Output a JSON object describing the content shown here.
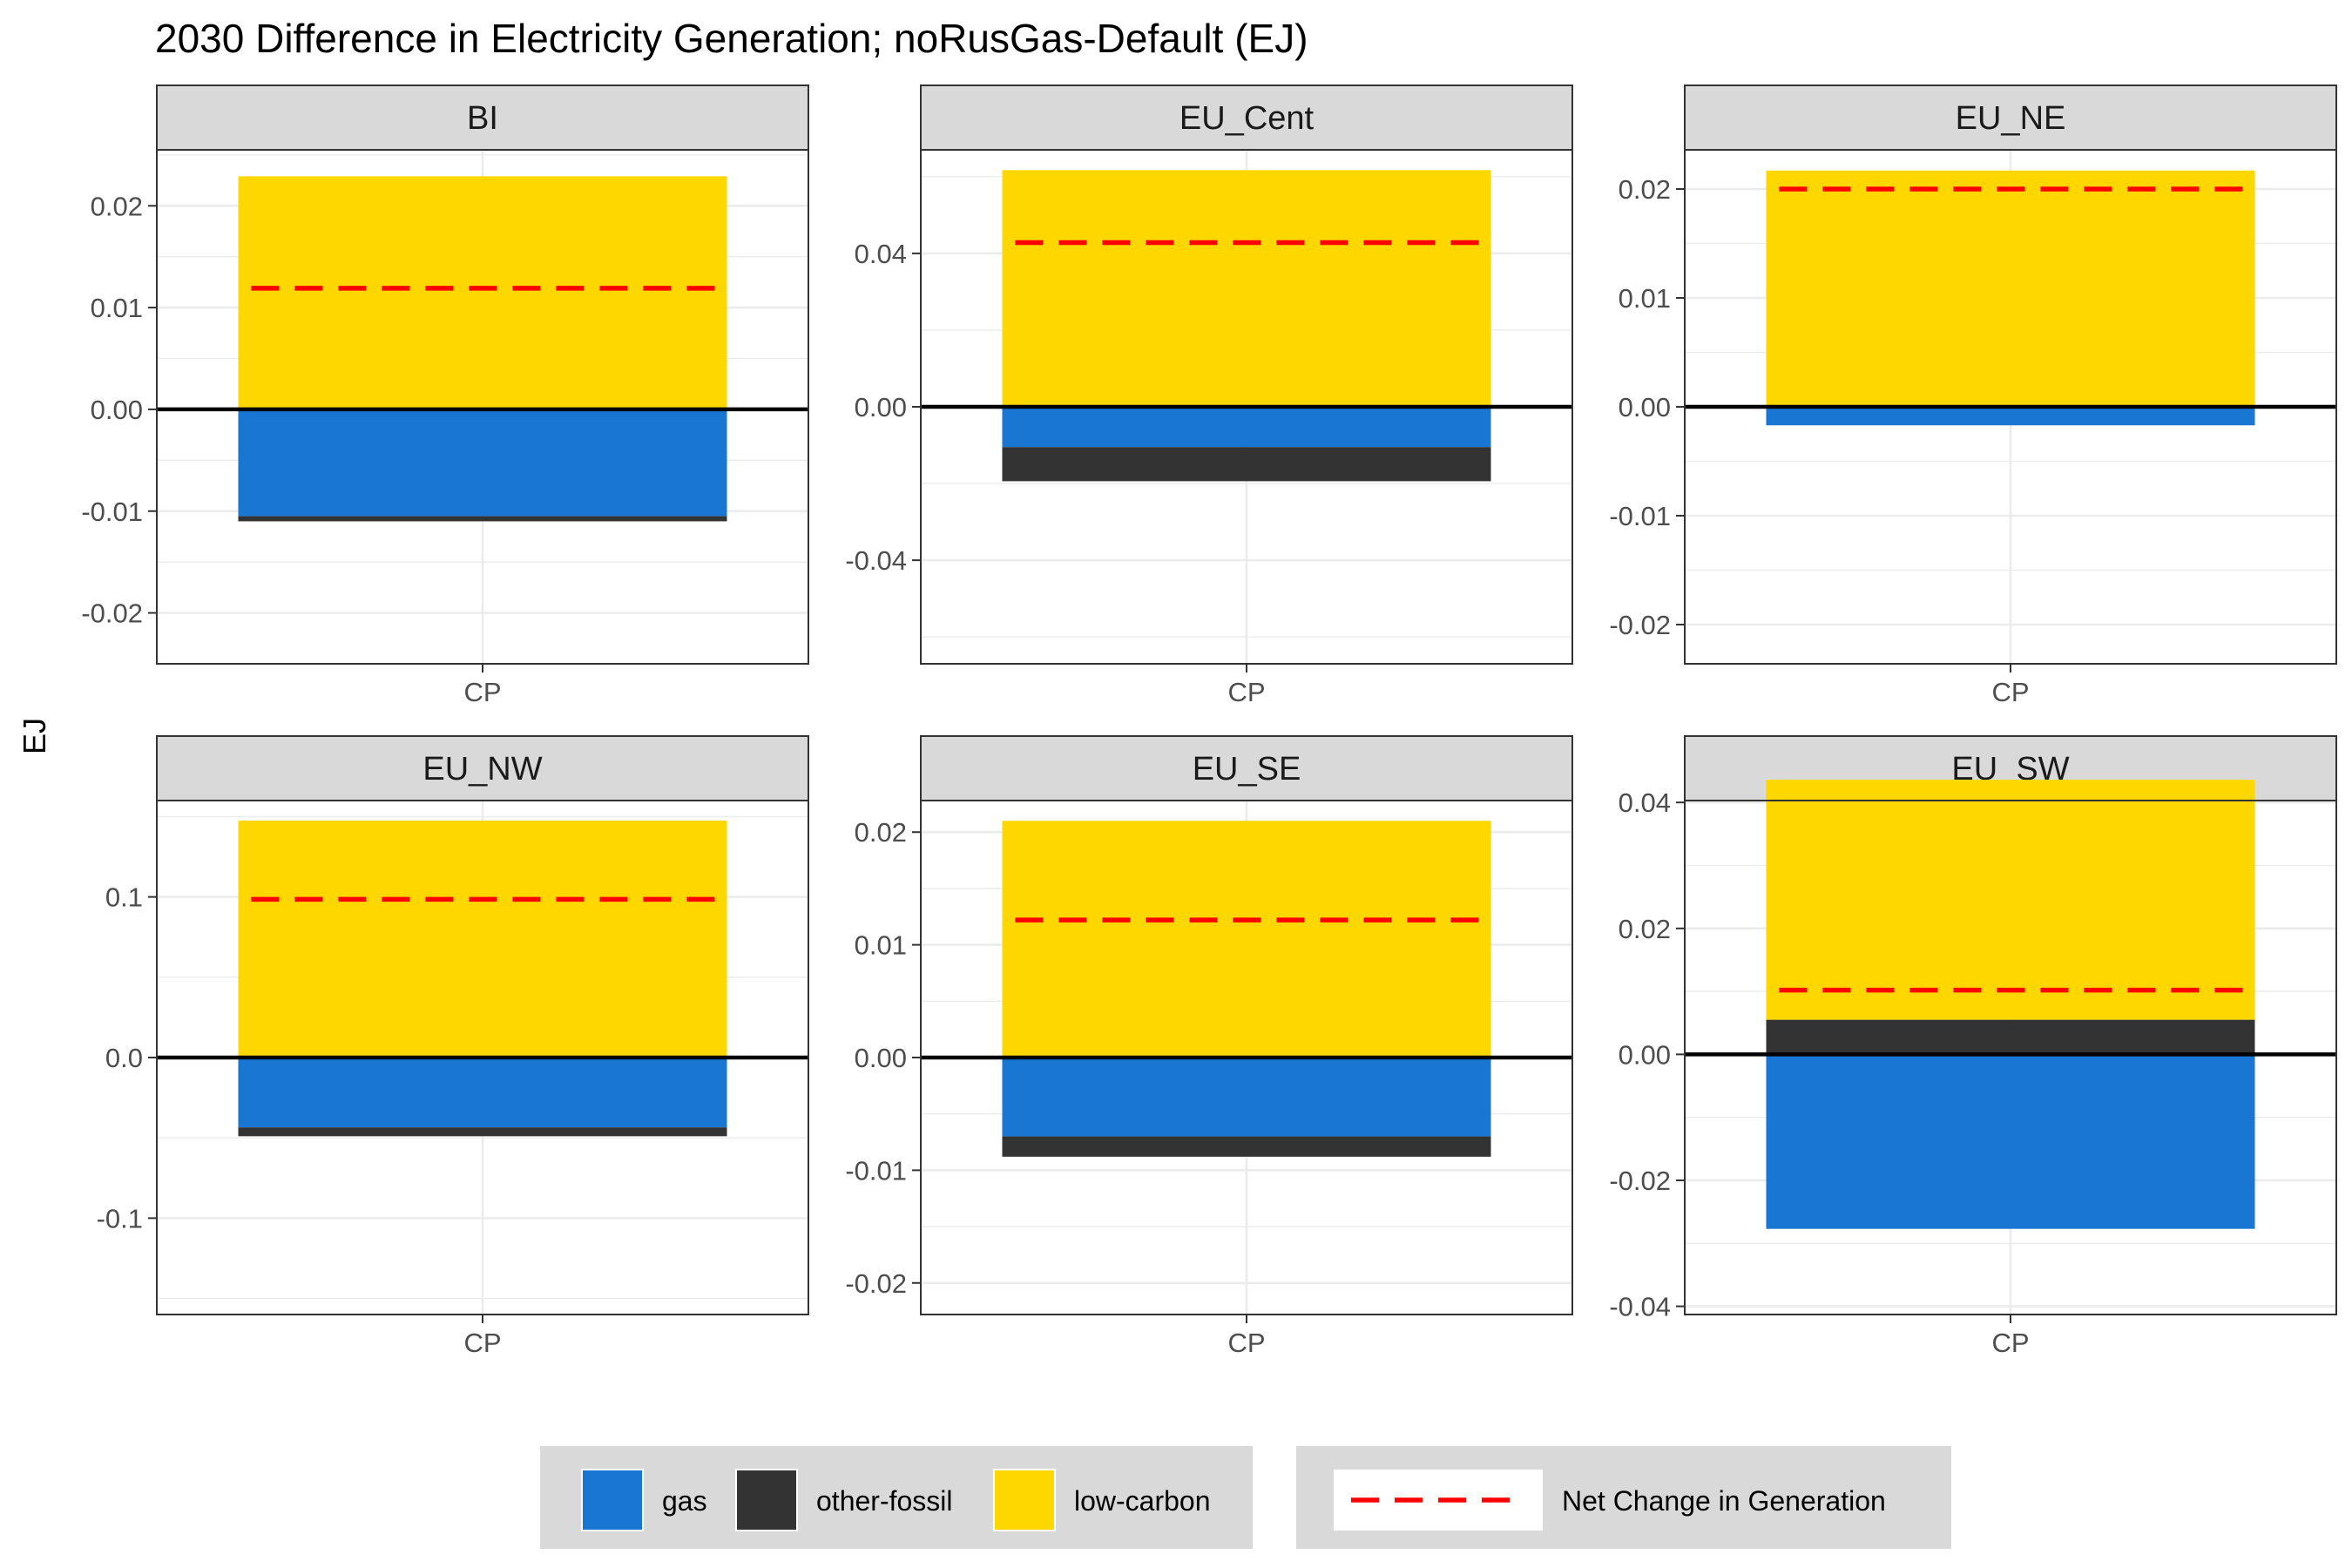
{
  "chart_data": {
    "type": "bar",
    "stacked": true,
    "title": "2030 Difference in Electricity Generation; noRusGas-Default (EJ)",
    "ylabel": "EJ",
    "xlabel": "",
    "grid": true,
    "legend_position": "bottom",
    "colors": {
      "gas": "#1976D2",
      "other-fossil": "#333333",
      "low-carbon": "#FFD700",
      "net": "#FF0000",
      "strip_bg": "#D9D9D9",
      "grid": "#EBEBEB"
    },
    "legend": {
      "fill_items": [
        {
          "key": "gas",
          "label": "gas"
        },
        {
          "key": "other-fossil",
          "label": "other-fossil"
        },
        {
          "key": "low-carbon",
          "label": "low-carbon"
        }
      ],
      "line_item": {
        "label": "Net Change in Generation"
      }
    },
    "panels": [
      {
        "region": "BI",
        "category": "CP",
        "ylim": [
          -0.025,
          0.0255
        ],
        "major_ticks": [
          -0.02,
          -0.01,
          0.0,
          0.01,
          0.02
        ],
        "tick_labels": [
          "-0.02",
          "-0.01",
          "0.00",
          "0.01",
          "0.02"
        ],
        "series": {
          "gas": -0.0105,
          "other-fossil": -0.0005,
          "low-carbon": 0.0229
        },
        "net_change": 0.0119
      },
      {
        "region": "EU_Cent",
        "category": "CP",
        "ylim": [
          -0.067,
          0.067
        ],
        "major_ticks": [
          -0.04,
          0.0,
          0.04
        ],
        "tick_labels": [
          "-0.04",
          "0.00",
          "0.04"
        ],
        "series": {
          "gas": -0.0105,
          "other-fossil": -0.0089,
          "low-carbon": 0.0617
        },
        "net_change": 0.0428
      },
      {
        "region": "EU_NE",
        "category": "CP",
        "ylim": [
          -0.0236,
          0.0236
        ],
        "major_ticks": [
          -0.02,
          -0.01,
          0.0,
          0.01,
          0.02
        ],
        "tick_labels": [
          "-0.02",
          "-0.01",
          "0.00",
          "0.01",
          "0.02"
        ],
        "series": {
          "gas": -0.0017,
          "other-fossil": 0.0,
          "low-carbon": 0.0217
        },
        "net_change": 0.02
      },
      {
        "region": "EU_NW",
        "category": "CP",
        "ylim": [
          -0.16,
          0.16
        ],
        "major_ticks": [
          -0.1,
          0.0,
          0.1
        ],
        "tick_labels": [
          "-0.1",
          "0.0",
          "0.1"
        ],
        "series": {
          "gas": -0.0435,
          "other-fossil": -0.0055,
          "low-carbon": 0.1475
        },
        "net_change": 0.0985
      },
      {
        "region": "EU_SE",
        "category": "CP",
        "ylim": [
          -0.0228,
          0.0228
        ],
        "major_ticks": [
          -0.02,
          -0.01,
          0.0,
          0.01,
          0.02
        ],
        "tick_labels": [
          "-0.02",
          "-0.01",
          "0.00",
          "0.01",
          "0.02"
        ],
        "series": {
          "gas": -0.007,
          "other-fossil": -0.0018,
          "low-carbon": 0.021
        },
        "net_change": 0.0122
      },
      {
        "region": "EU_SW",
        "category": "CP",
        "ylim": [
          -0.0413,
          0.0403
        ],
        "major_ticks": [
          -0.04,
          -0.02,
          0.0,
          0.02,
          0.04
        ],
        "tick_labels": [
          "-0.04",
          "-0.02",
          "0.00",
          "0.02",
          "0.04"
        ],
        "series": {
          "gas": -0.0277,
          "other-fossil": 0.0055,
          "low-carbon": 0.0381
        },
        "net_change": 0.0102
      }
    ]
  }
}
